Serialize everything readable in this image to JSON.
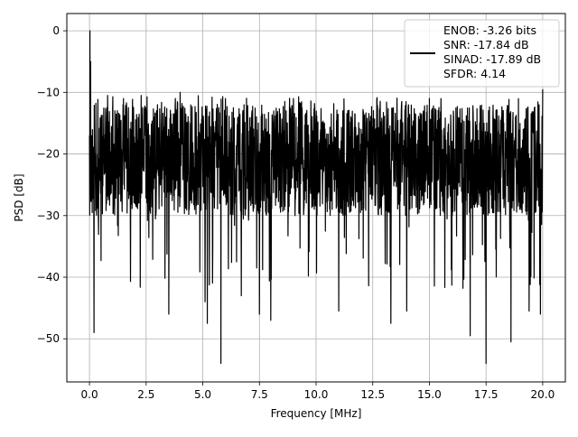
{
  "chart_data": {
    "type": "line",
    "title": "",
    "xlabel": "Frequency [MHz]",
    "ylabel": "PSD [dB]",
    "xlim": [
      -1.0,
      21.0
    ],
    "ylim": [
      -57.0,
      2.8
    ],
    "xticks": [
      0.0,
      2.5,
      5.0,
      7.5,
      10.0,
      12.5,
      15.0,
      17.5,
      20.0
    ],
    "xtick_labels": [
      "0.0",
      "2.5",
      "5.0",
      "7.5",
      "10.0",
      "12.5",
      "15.0",
      "17.5",
      "20.0"
    ],
    "yticks": [
      0,
      -10,
      -20,
      -30,
      -40,
      -50
    ],
    "ytick_labels": [
      "0",
      "−10",
      "−20",
      "−30",
      "−40",
      "−50"
    ],
    "grid": true,
    "legend_position": "top-right",
    "legend_text": [
      "ENOB: -3.26 bits",
      "SNR: -17.84 dB",
      "SINAD: -17.89 dB",
      "SFDR: 4.14"
    ],
    "series": [
      {
        "color": "#000000",
        "note_on_values": "Noisy spectrum of ~2000 points from 0 to 20 MHz; noise floor fluctuating roughly between -12 and -30 dB with deep dips. Key visible features listed as points.",
        "points": [
          [
            0.0,
            -17.0
          ],
          [
            0.02,
            0.0
          ],
          [
            0.05,
            -5.0
          ],
          [
            0.1,
            -20.0
          ],
          [
            0.2,
            -49.0
          ],
          [
            0.3,
            -25.0
          ],
          [
            0.8,
            -10.5
          ],
          [
            1.5,
            -11.0
          ],
          [
            3.0,
            -12.0
          ],
          [
            3.5,
            -46.0
          ],
          [
            4.0,
            -10.0
          ],
          [
            5.1,
            -44.0
          ],
          [
            5.2,
            -47.5
          ],
          [
            5.8,
            -54.0
          ],
          [
            6.0,
            -11.0
          ],
          [
            6.7,
            -43.0
          ],
          [
            7.5,
            -46.0
          ],
          [
            8.0,
            -47.0
          ],
          [
            9.0,
            -11.0
          ],
          [
            11.0,
            -45.5
          ],
          [
            13.3,
            -47.5
          ],
          [
            14.0,
            -45.5
          ],
          [
            15.0,
            -11.0
          ],
          [
            16.8,
            -49.5
          ],
          [
            17.5,
            -54.0
          ],
          [
            18.6,
            -50.5
          ],
          [
            19.4,
            -45.5
          ],
          [
            19.9,
            -46.0
          ],
          [
            20.0,
            -9.5
          ]
        ]
      }
    ]
  }
}
